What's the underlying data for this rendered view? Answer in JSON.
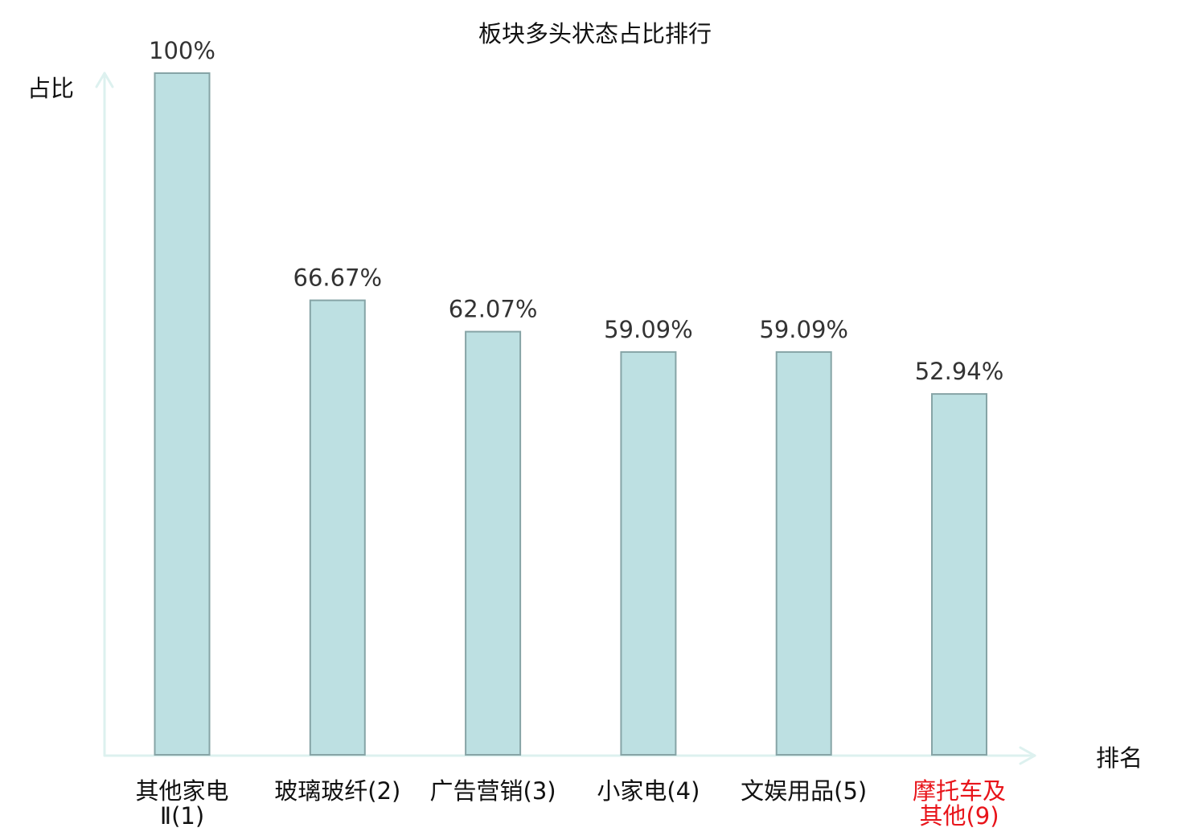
{
  "chart_data": {
    "type": "bar",
    "title": "板块多头状态占比排行",
    "xlabel": "排名",
    "ylabel": "占比",
    "ylim": [
      0,
      100
    ],
    "grid": false,
    "legend": "none",
    "categories": [
      {
        "lines": [
          "其他家电",
          "Ⅱ(1)"
        ],
        "highlight": false
      },
      {
        "lines": [
          "玻璃玻纤(2)"
        ],
        "highlight": false
      },
      {
        "lines": [
          "广告营销(3)"
        ],
        "highlight": false
      },
      {
        "lines": [
          "小家电(4)"
        ],
        "highlight": false
      },
      {
        "lines": [
          "文娱用品(5)"
        ],
        "highlight": false
      },
      {
        "lines": [
          "摩托车及",
          "其他(9)"
        ],
        "highlight": true
      }
    ],
    "values": [
      100,
      66.67,
      62.07,
      59.09,
      59.09,
      52.94
    ],
    "value_labels": [
      "100%",
      "66.67%",
      "62.07%",
      "59.09%",
      "59.09%",
      "52.94%"
    ]
  },
  "colors": {
    "bar_fill": "#bde0e2",
    "bar_stroke": "#86a4a6",
    "axis": "#ddf1ef",
    "text": "#333333",
    "category_text": "#111111",
    "highlight_text": "#e8141a"
  }
}
